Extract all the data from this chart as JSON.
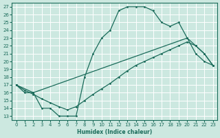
{
  "xlabel": "Humidex (Indice chaleur)",
  "bg_color": "#cce8e0",
  "grid_color": "#ffffff",
  "line_color": "#1a6b5a",
  "xlim": [
    -0.5,
    23.5
  ],
  "ylim": [
    12.5,
    27.5
  ],
  "xticks": [
    0,
    1,
    2,
    3,
    4,
    5,
    6,
    7,
    8,
    9,
    10,
    11,
    12,
    13,
    14,
    15,
    16,
    17,
    18,
    19,
    20,
    21,
    22,
    23
  ],
  "yticks": [
    13,
    14,
    15,
    16,
    17,
    18,
    19,
    20,
    21,
    22,
    23,
    24,
    25,
    26,
    27
  ],
  "line1_x": [
    0,
    1,
    2,
    3,
    4,
    5,
    6,
    7,
    8,
    9,
    10,
    11,
    12,
    13,
    14,
    15,
    16,
    17,
    18,
    19,
    20,
    21,
    22,
    23
  ],
  "line1_y": [
    17,
    16,
    16,
    14,
    14,
    13,
    13,
    13,
    18,
    21,
    23,
    24,
    26.5,
    27,
    27,
    27,
    26.5,
    25,
    24.5,
    25,
    23,
    21,
    20,
    19.5
  ],
  "line2_x": [
    0,
    2,
    20,
    21,
    22,
    23
  ],
  "line2_y": [
    17,
    16,
    23,
    22,
    21,
    19.5
  ],
  "line3_x": [
    0,
    1,
    2,
    3,
    4,
    5,
    6,
    7,
    8,
    9,
    10,
    11,
    12,
    13,
    14,
    15,
    16,
    17,
    18,
    19,
    20,
    21,
    22,
    23
  ],
  "line3_y": [
    17,
    16.3,
    15.8,
    15.2,
    14.7,
    14.2,
    13.8,
    14.2,
    15.0,
    15.8,
    16.5,
    17.2,
    18.0,
    18.8,
    19.5,
    20.0,
    20.5,
    21.0,
    21.5,
    22.0,
    22.5,
    22.0,
    21.0,
    19.5
  ]
}
